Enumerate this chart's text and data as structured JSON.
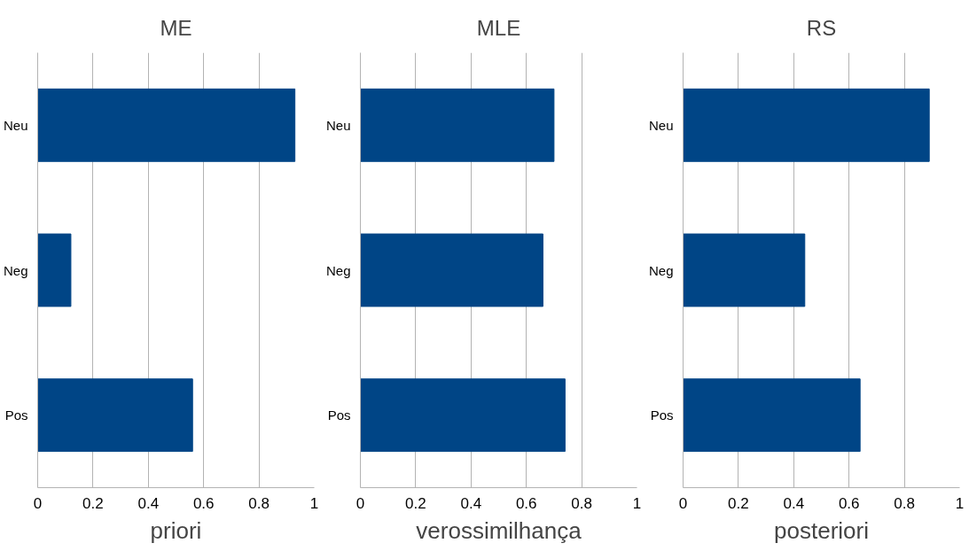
{
  "chart_data": [
    {
      "type": "bar",
      "orientation": "horizontal",
      "title": "ME",
      "xlabel": "priori",
      "categories": [
        "Neu",
        "Neg",
        "Pos"
      ],
      "values": [
        0.93,
        0.12,
        0.56
      ],
      "color": "#004586",
      "xlim": [
        0,
        1
      ],
      "xticks": [
        0,
        0.2,
        0.4,
        0.6,
        0.8,
        1
      ],
      "grid": "x"
    },
    {
      "type": "bar",
      "orientation": "horizontal",
      "title": "MLE",
      "xlabel": "verossimilhança",
      "categories": [
        "Neu",
        "Neg",
        "Pos"
      ],
      "values": [
        0.7,
        0.66,
        0.74
      ],
      "color": "#004586",
      "xlim": [
        0,
        1
      ],
      "xticks": [
        0,
        0.2,
        0.4,
        0.6,
        0.8,
        1
      ],
      "grid": "x"
    },
    {
      "type": "bar",
      "orientation": "horizontal",
      "title": "RS",
      "xlabel": "posteriori",
      "categories": [
        "Neu",
        "Neg",
        "Pos"
      ],
      "values": [
        0.89,
        0.44,
        0.64
      ],
      "color": "#004586",
      "xlim": [
        0,
        1
      ],
      "xticks": [
        0,
        0.2,
        0.4,
        0.6,
        0.8,
        1
      ],
      "grid": "x"
    }
  ]
}
